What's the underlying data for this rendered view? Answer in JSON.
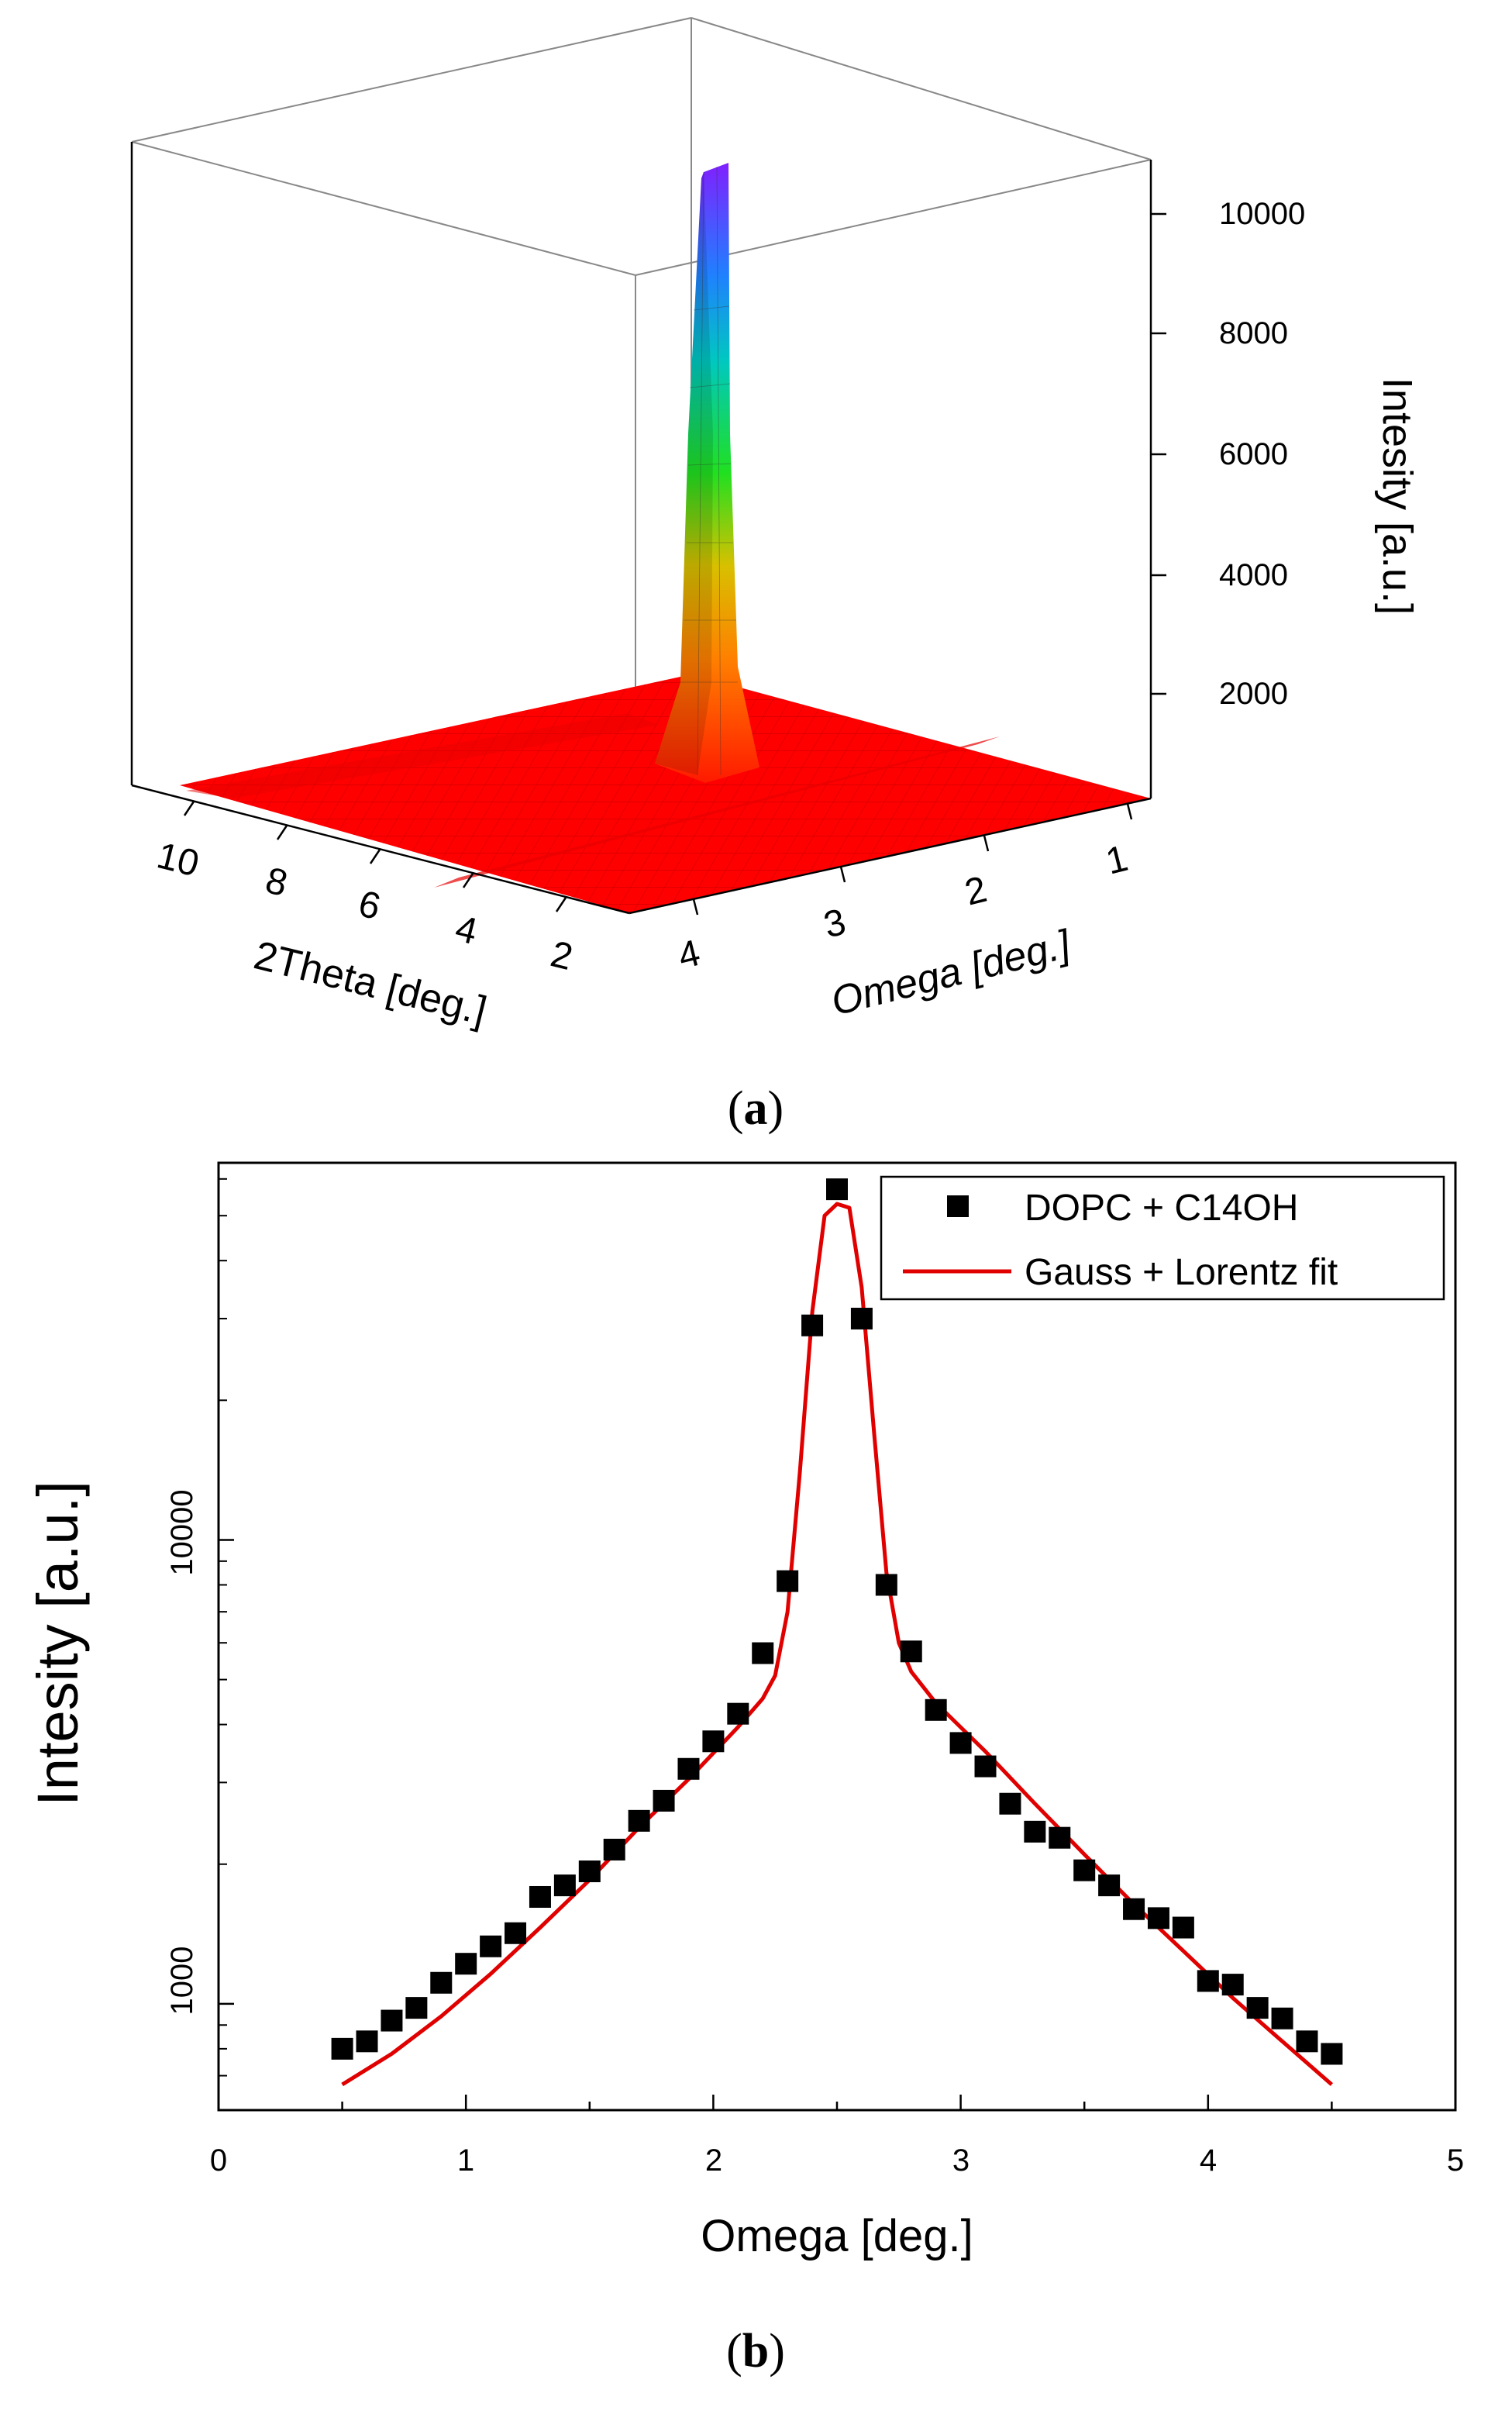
{
  "panel_a": {
    "caption_open": "(",
    "caption_letter": "a",
    "caption_close": ")"
  },
  "panel_b": {
    "caption_open": "(",
    "caption_letter": "b",
    "caption_close": ")"
  },
  "colors": {
    "surface_base": "#ff0000",
    "fit_line": "#e00000",
    "markers": "#000000",
    "axis": "#000000",
    "box_edges": "#888888"
  },
  "chart_data": [
    {
      "type": "surface3d",
      "title": "",
      "zlabel": "Intesity [a.u.]",
      "xlabel": "2Theta [deg.]",
      "ylabel": "Omega [deg.]",
      "x_ticks": [
        "10",
        "8",
        "6",
        "4",
        "2"
      ],
      "y_ticks": [
        "4",
        "3",
        "2",
        "1"
      ],
      "z_ticks": [
        "2000",
        "4000",
        "6000",
        "8000",
        "10000"
      ],
      "zlim": [
        0,
        11000
      ],
      "peak": {
        "two_theta": 5,
        "omega": 2.5,
        "intensity": 10500
      },
      "colormap": "rainbow (red low → violet high)"
    },
    {
      "type": "scatter",
      "title": "",
      "xlabel": "Omega [deg.]",
      "ylabel": "Intesity [a.u.]",
      "y_scale": "log",
      "xlim": [
        0,
        5
      ],
      "ylim": [
        590,
        65000
      ],
      "x_ticks": [
        "0",
        "1",
        "2",
        "3",
        "4",
        "5"
      ],
      "y_ticks": [
        "1000",
        "10000"
      ],
      "legend_position": "top-right",
      "series": [
        {
          "name": "DOPC + C14OH",
          "style": "markers",
          "x": [
            0.5,
            0.6,
            0.7,
            0.8,
            0.9,
            1.0,
            1.1,
            1.2,
            1.3,
            1.4,
            1.5,
            1.6,
            1.7,
            1.8,
            1.9,
            2.0,
            2.1,
            2.2,
            2.3,
            2.4,
            2.5,
            2.6,
            2.7,
            2.8,
            2.9,
            3.0,
            3.1,
            3.2,
            3.3,
            3.4,
            3.5,
            3.6,
            3.7,
            3.8,
            3.9,
            4.0,
            4.1,
            4.2,
            4.3,
            4.4,
            4.5
          ],
          "y": [
            800,
            830,
            920,
            980,
            1110,
            1220,
            1330,
            1420,
            1700,
            1800,
            1930,
            2150,
            2480,
            2740,
            3210,
            3680,
            4220,
            5700,
            8150,
            29000,
            57000,
            30000,
            8000,
            5750,
            4300,
            3650,
            3250,
            2700,
            2350,
            2280,
            1940,
            1800,
            1600,
            1530,
            1460,
            1120,
            1100,
            980,
            930,
            830,
            780
          ]
        },
        {
          "name": "Gauss + Lorentz fit",
          "style": "line",
          "x": [
            0.5,
            0.7,
            0.9,
            1.1,
            1.3,
            1.5,
            1.7,
            1.9,
            2.1,
            2.2,
            2.25,
            2.3,
            2.35,
            2.4,
            2.45,
            2.5,
            2.55,
            2.6,
            2.65,
            2.7,
            2.75,
            2.8,
            2.9,
            3.1,
            3.3,
            3.5,
            3.7,
            3.9,
            4.1,
            4.3,
            4.5
          ],
          "y": [
            670,
            780,
            940,
            1160,
            1460,
            1850,
            2400,
            3050,
            3950,
            4550,
            5100,
            7000,
            14000,
            31000,
            50000,
            53000,
            52000,
            35000,
            17000,
            8500,
            6000,
            5200,
            4450,
            3500,
            2700,
            2100,
            1640,
            1300,
            1030,
            830,
            670
          ]
        }
      ]
    }
  ]
}
